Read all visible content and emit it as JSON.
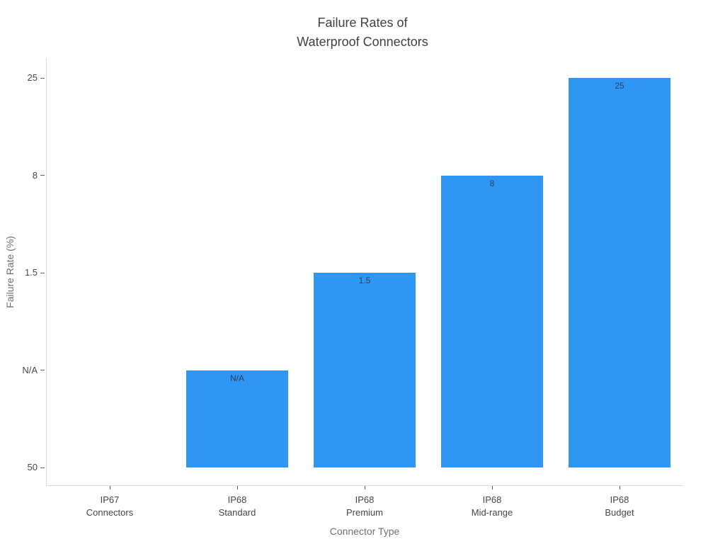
{
  "chart_data": {
    "type": "bar",
    "title": "Failure Rates of\nWaterproof Connectors",
    "xlabel": "Connector Type",
    "ylabel": "Failure Rate (%)",
    "categories": [
      "IP67 Connectors",
      "IP68 Standard",
      "IP68 Premium",
      "IP68 Mid-range",
      "IP68 Budget"
    ],
    "category_label_lines": [
      [
        "IP67",
        "Connectors"
      ],
      [
        "IP68",
        "Standard"
      ],
      [
        "IP68",
        "Premium"
      ],
      [
        "IP68",
        "Mid-range"
      ],
      [
        "IP68",
        "Budget"
      ]
    ],
    "values": [
      "50",
      "N/A",
      "1.5",
      "8",
      "25"
    ],
    "y_axis": {
      "type": "category",
      "tick_labels_bottom_to_top": [
        "50",
        "N/A",
        "1.5",
        "8",
        "25"
      ]
    },
    "legend": "none",
    "grid": "off",
    "colors": {
      "bar": "#2f96f4",
      "bar_label_text": "#2a3f5f",
      "tick_text": "#45454d",
      "axis_title_text": "#6f6f78",
      "title_text": "#3d4046",
      "axis_line": "#d9d9de",
      "background": "#ffffff"
    }
  }
}
